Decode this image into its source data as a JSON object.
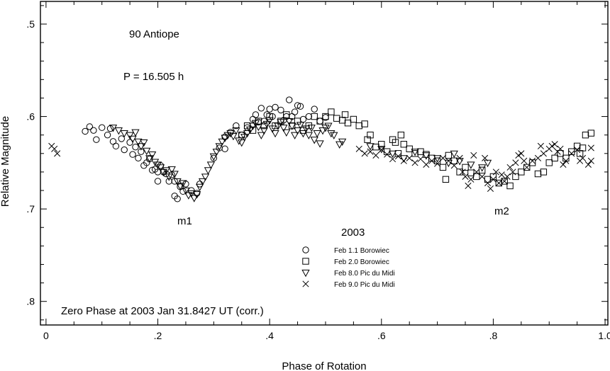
{
  "chart_data": {
    "type": "scatter",
    "title": "90 Antiope",
    "period_label": "P = 16.505 h",
    "year_label": "2003",
    "zero_phase_note": "Zero Phase at 2003 Jan 31.8427 UT (corr.)",
    "xlabel": "Phase of Rotation",
    "ylabel": "Relative Magnitude",
    "xlim": [
      -0.01,
      1.005
    ],
    "ylim": [
      0.8255,
      0.4755
    ],
    "y_inverted": true,
    "x_ticks": [
      0,
      0.2,
      0.4,
      0.6,
      0.8,
      1.0
    ],
    "x_tick_labels": [
      "0",
      ".2",
      ".4",
      ".6",
      ".8",
      "1.0"
    ],
    "y_ticks": [
      0.5,
      0.6,
      0.7,
      0.8
    ],
    "y_tick_labels": [
      ".5",
      ".6",
      ".7",
      ".8"
    ],
    "grid": false,
    "legend_placement": "bottom-center",
    "minima_labels": [
      {
        "text": "m1",
        "x": 0.253,
        "y": 0.713
      },
      {
        "text": "m2",
        "x": 0.82,
        "y": 0.703
      }
    ],
    "series": [
      {
        "name": "Feb 1.1 Borowiec",
        "marker": "circle",
        "points": [
          [
            0.07,
            0.616
          ],
          [
            0.078,
            0.611
          ],
          [
            0.085,
            0.615
          ],
          [
            0.09,
            0.625
          ],
          [
            0.1,
            0.612
          ],
          [
            0.11,
            0.62
          ],
          [
            0.115,
            0.613
          ],
          [
            0.12,
            0.627
          ],
          [
            0.125,
            0.632
          ],
          [
            0.135,
            0.624
          ],
          [
            0.14,
            0.636
          ],
          [
            0.15,
            0.628
          ],
          [
            0.155,
            0.641
          ],
          [
            0.16,
            0.633
          ],
          [
            0.165,
            0.645
          ],
          [
            0.17,
            0.638
          ],
          [
            0.175,
            0.653
          ],
          [
            0.18,
            0.65
          ],
          [
            0.185,
            0.646
          ],
          [
            0.19,
            0.658
          ],
          [
            0.195,
            0.657
          ],
          [
            0.2,
            0.66
          ],
          [
            0.2,
            0.67
          ],
          [
            0.205,
            0.653
          ],
          [
            0.21,
            0.66
          ],
          [
            0.215,
            0.662
          ],
          [
            0.22,
            0.67
          ],
          [
            0.225,
            0.663
          ],
          [
            0.23,
            0.67
          ],
          [
            0.23,
            0.686
          ],
          [
            0.235,
            0.689
          ],
          [
            0.24,
            0.676
          ],
          [
            0.245,
            0.681
          ],
          [
            0.25,
            0.673
          ],
          [
            0.26,
            0.68
          ],
          [
            0.27,
            0.683
          ],
          [
            0.275,
            0.673
          ],
          [
            0.3,
            0.645
          ],
          [
            0.31,
            0.634
          ],
          [
            0.32,
            0.622
          ],
          [
            0.32,
            0.635
          ],
          [
            0.33,
            0.617
          ],
          [
            0.34,
            0.61
          ],
          [
            0.35,
            0.62
          ],
          [
            0.36,
            0.612
          ],
          [
            0.37,
            0.603
          ],
          [
            0.375,
            0.598
          ],
          [
            0.38,
            0.606
          ],
          [
            0.385,
            0.591
          ],
          [
            0.39,
            0.605
          ],
          [
            0.395,
            0.598
          ],
          [
            0.4,
            0.592
          ],
          [
            0.405,
            0.6
          ],
          [
            0.41,
            0.59
          ],
          [
            0.42,
            0.593
          ],
          [
            0.425,
            0.604
          ],
          [
            0.43,
            0.6
          ],
          [
            0.435,
            0.582
          ],
          [
            0.44,
            0.6
          ],
          [
            0.445,
            0.595
          ],
          [
            0.45,
            0.588
          ],
          [
            0.455,
            0.589
          ],
          [
            0.46,
            0.603
          ],
          [
            0.47,
            0.6
          ],
          [
            0.48,
            0.592
          ],
          [
            0.49,
            0.605
          ],
          [
            0.5,
            0.601
          ]
        ]
      },
      {
        "name": "Feb 2.0 Borowiec",
        "marker": "square",
        "points": [
          [
            0.35,
            0.62
          ],
          [
            0.36,
            0.61
          ],
          [
            0.37,
            0.615
          ],
          [
            0.38,
            0.605
          ],
          [
            0.39,
            0.61
          ],
          [
            0.4,
            0.6
          ],
          [
            0.41,
            0.61
          ],
          [
            0.42,
            0.605
          ],
          [
            0.43,
            0.598
          ],
          [
            0.44,
            0.61
          ],
          [
            0.45,
            0.605
          ],
          [
            0.46,
            0.615
          ],
          [
            0.47,
            0.61
          ],
          [
            0.48,
            0.6
          ],
          [
            0.49,
            0.605
          ],
          [
            0.5,
            0.6
          ],
          [
            0.51,
            0.595
          ],
          [
            0.52,
            0.602
          ],
          [
            0.53,
            0.604
          ],
          [
            0.535,
            0.598
          ],
          [
            0.54,
            0.607
          ],
          [
            0.55,
            0.603
          ],
          [
            0.56,
            0.61
          ],
          [
            0.57,
            0.608
          ],
          [
            0.575,
            0.625
          ],
          [
            0.58,
            0.62
          ],
          [
            0.59,
            0.633
          ],
          [
            0.6,
            0.63
          ],
          [
            0.61,
            0.638
          ],
          [
            0.62,
            0.625
          ],
          [
            0.625,
            0.628
          ],
          [
            0.63,
            0.64
          ],
          [
            0.635,
            0.62
          ],
          [
            0.64,
            0.63
          ],
          [
            0.65,
            0.635
          ],
          [
            0.66,
            0.64
          ],
          [
            0.67,
            0.638
          ],
          [
            0.68,
            0.641
          ],
          [
            0.69,
            0.645
          ],
          [
            0.7,
            0.648
          ],
          [
            0.71,
            0.655
          ],
          [
            0.715,
            0.668
          ],
          [
            0.72,
            0.642
          ],
          [
            0.73,
            0.648
          ],
          [
            0.74,
            0.66
          ],
          [
            0.75,
            0.655
          ],
          [
            0.76,
            0.661
          ],
          [
            0.77,
            0.665
          ],
          [
            0.78,
            0.658
          ],
          [
            0.79,
            0.668
          ],
          [
            0.8,
            0.665
          ],
          [
            0.81,
            0.672
          ],
          [
            0.82,
            0.67
          ],
          [
            0.83,
            0.675
          ],
          [
            0.84,
            0.665
          ],
          [
            0.85,
            0.66
          ],
          [
            0.86,
            0.655
          ],
          [
            0.87,
            0.65
          ],
          [
            0.88,
            0.662
          ],
          [
            0.89,
            0.66
          ],
          [
            0.9,
            0.65
          ],
          [
            0.91,
            0.645
          ],
          [
            0.92,
            0.64
          ],
          [
            0.93,
            0.645
          ],
          [
            0.94,
            0.638
          ],
          [
            0.95,
            0.632
          ],
          [
            0.96,
            0.634
          ],
          [
            0.965,
            0.62
          ],
          [
            0.975,
            0.618
          ],
          [
            0.955,
            0.64
          ]
        ]
      },
      {
        "name": "Feb 8.0 Pic du Midi",
        "marker": "triangle-down",
        "points": [
          [
            0.12,
            0.612
          ],
          [
            0.13,
            0.615
          ],
          [
            0.14,
            0.618
          ],
          [
            0.15,
            0.62
          ],
          [
            0.155,
            0.624
          ],
          [
            0.16,
            0.617
          ],
          [
            0.165,
            0.627
          ],
          [
            0.17,
            0.632
          ],
          [
            0.175,
            0.628
          ],
          [
            0.18,
            0.637
          ],
          [
            0.185,
            0.645
          ],
          [
            0.19,
            0.641
          ],
          [
            0.195,
            0.649
          ],
          [
            0.2,
            0.652
          ],
          [
            0.205,
            0.655
          ],
          [
            0.21,
            0.66
          ],
          [
            0.215,
            0.658
          ],
          [
            0.22,
            0.665
          ],
          [
            0.225,
            0.657
          ],
          [
            0.23,
            0.662
          ],
          [
            0.235,
            0.67
          ],
          [
            0.24,
            0.675
          ],
          [
            0.245,
            0.672
          ],
          [
            0.25,
            0.68
          ],
          [
            0.255,
            0.685
          ],
          [
            0.26,
            0.683
          ],
          [
            0.265,
            0.688
          ],
          [
            0.27,
            0.684
          ],
          [
            0.275,
            0.676
          ],
          [
            0.28,
            0.67
          ],
          [
            0.285,
            0.665
          ],
          [
            0.29,
            0.658
          ],
          [
            0.295,
            0.652
          ],
          [
            0.3,
            0.643
          ],
          [
            0.305,
            0.638
          ],
          [
            0.31,
            0.632
          ],
          [
            0.315,
            0.627
          ],
          [
            0.32,
            0.623
          ],
          [
            0.325,
            0.62
          ],
          [
            0.33,
            0.618
          ],
          [
            0.335,
            0.621
          ],
          [
            0.34,
            0.615
          ],
          [
            0.345,
            0.626
          ],
          [
            0.35,
            0.628
          ],
          [
            0.355,
            0.622
          ],
          [
            0.36,
            0.618
          ],
          [
            0.365,
            0.614
          ],
          [
            0.37,
            0.61
          ],
          [
            0.375,
            0.607
          ],
          [
            0.38,
            0.611
          ],
          [
            0.385,
            0.62
          ],
          [
            0.39,
            0.615
          ],
          [
            0.395,
            0.608
          ],
          [
            0.4,
            0.604
          ],
          [
            0.405,
            0.613
          ],
          [
            0.41,
            0.618
          ],
          [
            0.415,
            0.61
          ],
          [
            0.42,
            0.606
          ],
          [
            0.425,
            0.612
          ],
          [
            0.43,
            0.617
          ],
          [
            0.435,
            0.605
          ],
          [
            0.44,
            0.61
          ],
          [
            0.445,
            0.62
          ],
          [
            0.45,
            0.615
          ],
          [
            0.455,
            0.609
          ],
          [
            0.46,
            0.618
          ],
          [
            0.465,
            0.613
          ],
          [
            0.47,
            0.62
          ],
          [
            0.475,
            0.612
          ],
          [
            0.48,
            0.625
          ],
          [
            0.485,
            0.618
          ],
          [
            0.49,
            0.629
          ],
          [
            0.495,
            0.615
          ],
          [
            0.5,
            0.612
          ],
          [
            0.505,
            0.61
          ],
          [
            0.51,
            0.618
          ],
          [
            0.515,
            0.62
          ],
          [
            0.525,
            0.63
          ],
          [
            0.53,
            0.627
          ],
          [
            0.58,
            0.632
          ],
          [
            0.6,
            0.635
          ],
          [
            0.62,
            0.64
          ],
          [
            0.64,
            0.645
          ],
          [
            0.66,
            0.638
          ],
          [
            0.68,
            0.642
          ],
          [
            0.7,
            0.645
          ],
          [
            0.72,
            0.65
          ],
          [
            0.73,
            0.64
          ],
          [
            0.74,
            0.648
          ],
          [
            0.76,
            0.652
          ],
          [
            0.78,
            0.655
          ],
          [
            0.79,
            0.65
          ]
        ]
      },
      {
        "name": "Feb 9.0 Pic du Midi",
        "marker": "x",
        "points": [
          [
            0.01,
            0.632
          ],
          [
            0.015,
            0.635
          ],
          [
            0.02,
            0.64
          ],
          [
            0.56,
            0.635
          ],
          [
            0.57,
            0.64
          ],
          [
            0.58,
            0.638
          ],
          [
            0.59,
            0.642
          ],
          [
            0.6,
            0.636
          ],
          [
            0.61,
            0.641
          ],
          [
            0.62,
            0.646
          ],
          [
            0.63,
            0.643
          ],
          [
            0.64,
            0.648
          ],
          [
            0.65,
            0.645
          ],
          [
            0.66,
            0.65
          ],
          [
            0.67,
            0.646
          ],
          [
            0.68,
            0.652
          ],
          [
            0.69,
            0.648
          ],
          [
            0.7,
            0.651
          ],
          [
            0.71,
            0.645
          ],
          [
            0.72,
            0.648
          ],
          [
            0.73,
            0.653
          ],
          [
            0.74,
            0.645
          ],
          [
            0.745,
            0.66
          ],
          [
            0.75,
            0.665
          ],
          [
            0.755,
            0.675
          ],
          [
            0.76,
            0.668
          ],
          [
            0.765,
            0.642
          ],
          [
            0.77,
            0.66
          ],
          [
            0.78,
            0.665
          ],
          [
            0.785,
            0.645
          ],
          [
            0.79,
            0.672
          ],
          [
            0.795,
            0.678
          ],
          [
            0.8,
            0.668
          ],
          [
            0.805,
            0.66
          ],
          [
            0.81,
            0.672
          ],
          [
            0.815,
            0.663
          ],
          [
            0.82,
            0.67
          ],
          [
            0.825,
            0.665
          ],
          [
            0.83,
            0.655
          ],
          [
            0.835,
            0.66
          ],
          [
            0.84,
            0.65
          ],
          [
            0.845,
            0.642
          ],
          [
            0.85,
            0.64
          ],
          [
            0.855,
            0.648
          ],
          [
            0.86,
            0.655
          ],
          [
            0.87,
            0.648
          ],
          [
            0.88,
            0.645
          ],
          [
            0.885,
            0.632
          ],
          [
            0.89,
            0.64
          ],
          [
            0.9,
            0.635
          ],
          [
            0.905,
            0.632
          ],
          [
            0.91,
            0.63
          ],
          [
            0.915,
            0.638
          ],
          [
            0.92,
            0.635
          ],
          [
            0.925,
            0.652
          ],
          [
            0.93,
            0.648
          ],
          [
            0.94,
            0.64
          ],
          [
            0.95,
            0.636
          ],
          [
            0.955,
            0.648
          ],
          [
            0.96,
            0.645
          ],
          [
            0.97,
            0.652
          ],
          [
            0.975,
            0.648
          ],
          [
            0.975,
            0.634
          ]
        ]
      }
    ]
  }
}
